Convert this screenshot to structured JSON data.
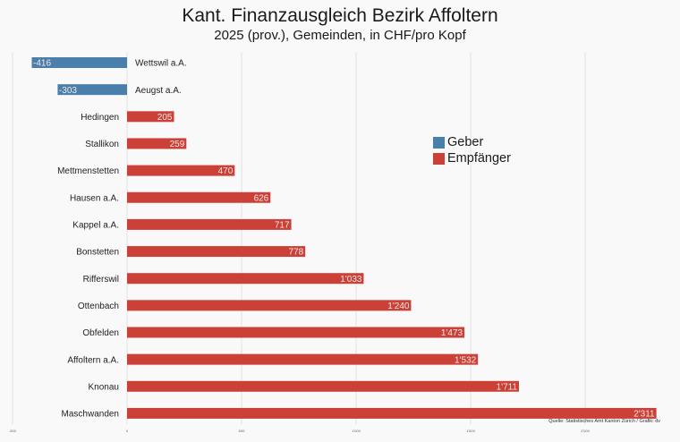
{
  "chart_data": {
    "type": "bar",
    "orientation": "horizontal",
    "title": "Kant. Finanzausgleich Bezirk Affoltern",
    "subtitle": "2025 (prov.), Gemeinden, in CHF/pro Kopf",
    "categories": [
      "Wettswil a.A.",
      "Aeugst a.A.",
      "Hedingen",
      "Stallikon",
      "Mettmenstetten",
      "Hausen a.A.",
      "Kappel a.A.",
      "Bonstetten",
      "Rifferswil",
      "Ottenbach",
      "Obfelden",
      "Affoltern a.A.",
      "Knonau",
      "Maschwanden"
    ],
    "values": [
      -416,
      -303,
      205,
      259,
      470,
      626,
      717,
      778,
      1033,
      1240,
      1473,
      1532,
      1711,
      2311
    ],
    "value_labels": [
      "-416",
      "-303",
      "205",
      "259",
      "470",
      "626",
      "717",
      "778",
      "1'033",
      "1'240",
      "1'473",
      "1'532",
      "1'711",
      "2'311"
    ],
    "xlim": [
      -500,
      2500
    ],
    "xticks": [
      -500,
      0,
      500,
      1000,
      1500,
      2000
    ],
    "xtick_labels": [
      "-500",
      "0",
      "500",
      "1'000",
      "1'500",
      "2'000"
    ],
    "grid": true,
    "legend": {
      "position": "right",
      "entries": [
        {
          "label": "Geber",
          "color": "#4a7eab"
        },
        {
          "label": "Empfänger",
          "color": "#cb4138"
        }
      ]
    },
    "xlabel": "",
    "ylabel": ""
  },
  "source": "Quelle: Statistisches Amt Kanton Zürich / Grafik: dv"
}
